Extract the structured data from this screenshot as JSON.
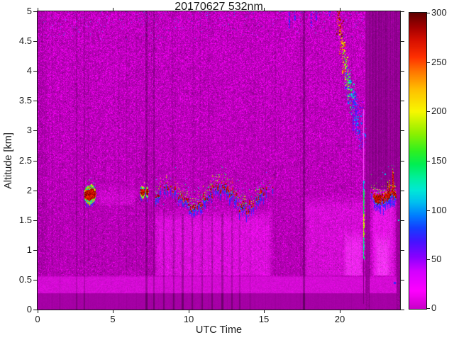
{
  "chart_data": {
    "type": "heatmap",
    "title": "20170627 532nm",
    "xlabel": "UTC Time",
    "ylabel": "Altitude [km]",
    "x_range": [
      0,
      24
    ],
    "x_ticks": [
      0,
      5,
      10,
      15,
      20
    ],
    "x_tick_labels": [
      "0",
      "5",
      "10",
      "15",
      "20"
    ],
    "y_range": [
      0,
      5
    ],
    "y_ticks": [
      0,
      0.5,
      1,
      1.5,
      2,
      2.5,
      3,
      3.5,
      4,
      4.5,
      5
    ],
    "y_tick_labels": [
      "0",
      "0.5",
      "1",
      "1.5",
      "2",
      "2.5",
      "3",
      "3.5",
      "4",
      "4.5",
      "5"
    ],
    "colorbar": {
      "range": [
        0,
        300
      ],
      "ticks": [
        0,
        50,
        100,
        150,
        200,
        250,
        300
      ],
      "tick_labels": [
        "0",
        "50",
        "100",
        "150",
        "200",
        "250",
        "300"
      ],
      "colormap": [
        [
          0,
          "#c800c8"
        ],
        [
          18,
          "#ff00ff"
        ],
        [
          38,
          "#d400ff"
        ],
        [
          52,
          "#8c00ff"
        ],
        [
          68,
          "#4613ff"
        ],
        [
          82,
          "#1440ff"
        ],
        [
          95,
          "#0080ff"
        ],
        [
          108,
          "#00c0f0"
        ],
        [
          120,
          "#00e8d8"
        ],
        [
          132,
          "#00f0a0"
        ],
        [
          146,
          "#00ee55"
        ],
        [
          160,
          "#30f020"
        ],
        [
          178,
          "#90f000"
        ],
        [
          200,
          "#f8f800"
        ],
        [
          222,
          "#ffc000"
        ],
        [
          240,
          "#ff7800"
        ],
        [
          255,
          "#ff3000"
        ],
        [
          272,
          "#d81000"
        ],
        [
          286,
          "#a00000"
        ],
        [
          300,
          "#5f0000"
        ]
      ]
    },
    "background": {
      "base_color": "#b200b2",
      "blind_zone": {
        "alt_max": 0.27,
        "color": "#a500a5"
      },
      "bright_band": {
        "alt_min": 0.27,
        "alt_max": 0.54
      },
      "dark_zone": {
        "t_min": 21.95,
        "alt_min": 2.02,
        "color": "#920092"
      },
      "dark_stripes": [
        [
          21.68,
          21.98
        ],
        [
          23.78,
          24
        ]
      ],
      "haze_regions": [
        {
          "t0": 7.7,
          "t1": 15.6,
          "a0": 0.45,
          "a1": 1.72,
          "boost": 38,
          "white": 14
        },
        {
          "t0": 17.6,
          "t1": 21.7,
          "a0": 0.45,
          "a1": 1.95,
          "boost": 30,
          "white": 12
        },
        {
          "t0": 22.0,
          "t1": 23.78,
          "a0": 0.45,
          "a1": 2.0,
          "boost": 46,
          "white": 20
        },
        {
          "t0": 20.2,
          "t1": 21.65,
          "a0": 0.4,
          "a1": 1.35,
          "boost": 26,
          "white": 26
        },
        {
          "t0": 22.3,
          "t1": 23.4,
          "a0": 0.4,
          "a1": 1.3,
          "boost": 18,
          "white": 30
        },
        {
          "t0": 3.9,
          "t1": 6.6,
          "a0": 1.75,
          "a1": 2.15,
          "boost": 18,
          "white": 8
        }
      ],
      "shadow_columns": [
        {
          "t": 1.45,
          "w": 1,
          "f": 0.88,
          "a1": 5
        },
        {
          "t": 2.52,
          "w": 2,
          "f": 0.86,
          "a1": 5
        },
        {
          "t": 3.06,
          "w": 2,
          "f": 0.83,
          "a1": 5
        },
        {
          "t": 7.12,
          "w": 3,
          "f": 0.74,
          "a1": 5
        },
        {
          "t": 7.66,
          "w": 2,
          "f": 0.77,
          "a1": 5
        },
        {
          "t": 17.58,
          "w": 3,
          "f": 0.72,
          "a1": 5
        },
        {
          "t": 8.32,
          "w": 2,
          "f": 0.8,
          "a1": 1.7
        },
        {
          "t": 8.95,
          "w": 2,
          "f": 0.78,
          "a1": 1.6
        },
        {
          "t": 9.55,
          "w": 3,
          "f": 0.75,
          "a1": 1.6
        },
        {
          "t": 10.2,
          "w": 2,
          "f": 0.8,
          "a1": 1.55
        },
        {
          "t": 10.85,
          "w": 2,
          "f": 0.78,
          "a1": 1.6
        },
        {
          "t": 11.5,
          "w": 2,
          "f": 0.8,
          "a1": 1.6
        },
        {
          "t": 12.15,
          "w": 3,
          "f": 0.76,
          "a1": 1.6
        },
        {
          "t": 12.8,
          "w": 2,
          "f": 0.8,
          "a1": 1.65
        },
        {
          "t": 13.35,
          "w": 2,
          "f": 0.82,
          "a1": 1.6
        },
        {
          "t": 14.05,
          "w": 1,
          "f": 0.85,
          "a1": 1.7
        }
      ]
    },
    "features": {
      "main_layer": {
        "t0": 7.8,
        "t1": 15.55,
        "alt_center": 1.8,
        "alt_amp": 0.17
      },
      "left_blobs": [
        {
          "t0": 3.05,
          "t1": 3.85,
          "a0": 1.78,
          "a1": 2.08
        },
        {
          "t0": 6.78,
          "t1": 7.08,
          "a0": 1.88,
          "a1": 2.06
        },
        {
          "t0": 7.14,
          "t1": 7.32,
          "a0": 1.9,
          "a1": 2.06
        }
      ],
      "right_layer": {
        "t0": 22.08,
        "t1": 23.72,
        "a0": 1.7,
        "a1": 1.97
      },
      "cloud_core": {
        "t0": 19.88,
        "a0": 4.98,
        "t1": 20.55,
        "a1": 3.95
      },
      "cloud_clusters": [
        {
          "t": 19.92,
          "alt": 4.86,
          "dt": 0.14,
          "da": 0.3,
          "v0": 230,
          "v1": 300
        },
        {
          "t": 20.1,
          "alt": 4.55,
          "dt": 0.13,
          "da": 0.3,
          "v0": 200,
          "v1": 290
        },
        {
          "t": 20.28,
          "alt": 4.25,
          "dt": 0.13,
          "da": 0.28,
          "v0": 170,
          "v1": 260
        },
        {
          "t": 20.45,
          "alt": 3.98,
          "dt": 0.13,
          "da": 0.26,
          "v0": 140,
          "v1": 230
        },
        {
          "t": 20.62,
          "alt": 3.75,
          "dt": 0.15,
          "da": 0.28,
          "v0": 110,
          "v1": 200
        },
        {
          "t": 20.82,
          "alt": 3.55,
          "dt": 0.17,
          "da": 0.3,
          "v0": 80,
          "v1": 160
        },
        {
          "t": 21.05,
          "alt": 3.35,
          "dt": 0.19,
          "da": 0.35,
          "v0": 60,
          "v1": 120
        },
        {
          "t": 21.35,
          "alt": 3.1,
          "dt": 0.22,
          "da": 0.4,
          "v0": 50,
          "v1": 95
        }
      ],
      "cloud_tail": {
        "t0": 20.3,
        "t1": 21.75,
        "a_top": 4.3,
        "a_drop": 1.3,
        "spread": 0.7,
        "v0": 50,
        "v1": 110,
        "n": 130
      },
      "wisps": [
        {
          "t": 16.62,
          "a0": 4.72,
          "a1": 5.0,
          "v": 70
        },
        {
          "t": 16.98,
          "a0": 4.85,
          "a1": 5.0,
          "v": 75
        },
        {
          "t": 18.08,
          "a0": 4.72,
          "a1": 5.0,
          "v": 70
        },
        {
          "t": 18.4,
          "a0": 4.86,
          "a1": 5.0,
          "v": 65
        },
        {
          "t": 19.28,
          "a0": 4.9,
          "a1": 5.0,
          "v": 60
        },
        {
          "t": 20.85,
          "a0": 3.0,
          "a1": 3.5,
          "v": 65
        },
        {
          "t": 21.02,
          "a0": 2.95,
          "a1": 3.4,
          "v": 60
        }
      ],
      "bright_line": {
        "t": 21.58,
        "segments": [
          {
            "a0": 2.15,
            "a1": 3.35,
            "color": "#ff50ff"
          },
          {
            "a0": 2.0,
            "a1": 2.15,
            "v": 110
          },
          {
            "a0": 1.6,
            "a1": 2.0,
            "v": 150
          },
          {
            "a0": 1.2,
            "a1": 1.6,
            "v": 185
          },
          {
            "a0": 0.85,
            "a1": 1.2,
            "v": 140
          },
          {
            "a0": 0.1,
            "a1": 0.85,
            "color": "#7a007a"
          }
        ]
      },
      "dots": [
        {
          "t": 23.58,
          "alt": 0.46,
          "v": 75,
          "s": 3
        },
        {
          "t": 23.0,
          "alt": 2.28,
          "v": 110,
          "s": 2
        },
        {
          "t": 23.9,
          "alt": 1.5,
          "v": 120,
          "s": 2
        }
      ],
      "top_specks": {
        "t0": 13,
        "t1": 19.9,
        "p": 0.08,
        "v0": 55,
        "v1": 125
      }
    }
  }
}
